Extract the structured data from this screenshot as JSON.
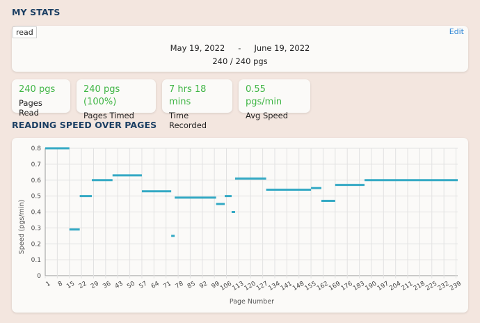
{
  "my_stats": {
    "title": "MY STATS",
    "badge": "read",
    "edit_label": "Edit",
    "start_date": "May 19, 2022",
    "date_separator": "-",
    "end_date": "June 19, 2022",
    "pages_progress": "240 / 240 pgs"
  },
  "stats": [
    {
      "value": "240 pgs",
      "label": "Pages Read"
    },
    {
      "value": "240 pgs (100%)",
      "label": "Pages Timed"
    },
    {
      "value": "7 hrs 18 mins",
      "label": "Time Recorded"
    },
    {
      "value": "0.55 pgs/min",
      "label": "Avg Speed"
    }
  ],
  "chart_section": {
    "title": "READING SPEED OVER PAGES"
  },
  "colors": {
    "line": "#34a9c4",
    "stat_value": "#3fb544",
    "title": "#1c3f63",
    "link": "#2f86d6"
  },
  "chart_data": {
    "type": "line",
    "xlabel": "Page Number",
    "ylabel": "Speed (pgs/min)",
    "xlim": [
      1,
      240
    ],
    "ylim": [
      0,
      0.8
    ],
    "y_ticks": [
      "0",
      "0.1",
      "0.2",
      "0.3",
      "0.4",
      "0.5",
      "0.6",
      "0.7",
      "0.8"
    ],
    "x_ticks": [
      "1",
      "8",
      "15",
      "22",
      "29",
      "36",
      "43",
      "50",
      "57",
      "64",
      "71",
      "78",
      "85",
      "92",
      "99",
      "106",
      "113",
      "120",
      "127",
      "134",
      "141",
      "148",
      "155",
      "162",
      "169",
      "176",
      "183",
      "190",
      "197",
      "204",
      "211",
      "218",
      "225",
      "232",
      "239"
    ],
    "grid": true,
    "series": [
      {
        "segments": [
          {
            "x": [
              1,
              15
            ],
            "y": 0.8
          },
          {
            "x": [
              15,
              21
            ],
            "y": 0.29
          },
          {
            "x": [
              21,
              28
            ],
            "y": 0.5
          },
          {
            "x": [
              28,
              40
            ],
            "y": 0.6
          },
          {
            "x": [
              40,
              57
            ],
            "y": 0.63
          },
          {
            "x": [
              57,
              74
            ],
            "y": 0.53
          },
          {
            "x": [
              74,
              76
            ],
            "y": 0.25
          },
          {
            "x": [
              76,
              100
            ],
            "y": 0.49
          },
          {
            "x": [
              100,
              105
            ],
            "y": 0.45
          },
          {
            "x": [
              105,
              109
            ],
            "y": 0.5
          },
          {
            "x": [
              109,
              111
            ],
            "y": 0.4
          },
          {
            "x": [
              111,
              129
            ],
            "y": 0.61
          },
          {
            "x": [
              129,
              155
            ],
            "y": 0.54
          },
          {
            "x": [
              155,
              161
            ],
            "y": 0.55
          },
          {
            "x": [
              161,
              169
            ],
            "y": 0.47
          },
          {
            "x": [
              169,
              186
            ],
            "y": 0.57
          },
          {
            "x": [
              186,
              240
            ],
            "y": 0.6
          }
        ]
      }
    ]
  }
}
